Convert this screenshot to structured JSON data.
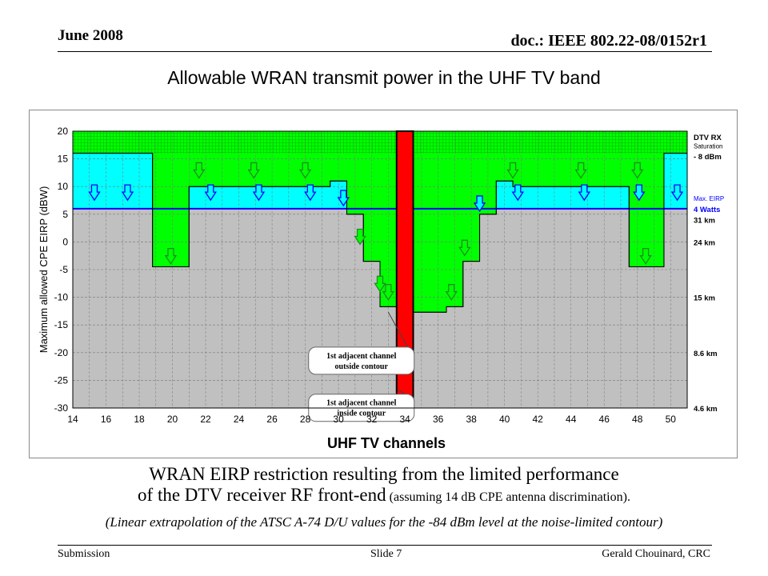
{
  "header": {
    "date": "June 2008",
    "doc_id": "doc.: IEEE 802.22-08/0152r1"
  },
  "slide_title": "Allowable WRAN transmit power in the UHF TV band",
  "captions": {
    "line1": "WRAN EIRP restriction resulting from the limited performance",
    "line2_main": "of the DTV receiver RF front-end",
    "line2_small": " (assuming 14 dB CPE antenna discrimination).",
    "line3": "(Linear extrapolation of the ATSC A-74 D/U values for the -84 dBm level at the noise-limited contour)"
  },
  "footer": {
    "left": "Submission",
    "middle": "Slide 7",
    "right": "Gerald Chouinard, CRC"
  },
  "colors": {
    "gray_background": "#c0c0c0",
    "green": "#00ff00",
    "cyan": "#00ffff",
    "blue_line": "#0000ff",
    "red_bar": "#ff0000",
    "grid": "#777777"
  },
  "chart_data": {
    "type": "area",
    "title": "",
    "xlabel": "UHF TV channels",
    "ylabel": "Maximum allowed CPE EIRP (dBW)",
    "xlim": [
      14,
      51
    ],
    "ylim": [
      -30,
      20
    ],
    "x_ticks": [
      "14",
      "16",
      "18",
      "20",
      "22",
      "24",
      "26",
      "28",
      "30",
      "32",
      "34",
      "36",
      "38",
      "40",
      "42",
      "44",
      "46",
      "48",
      "50"
    ],
    "y_ticks": [
      "20",
      "15",
      "10",
      "5",
      "0",
      "-5",
      "-10",
      "-15",
      "-20",
      "-25",
      "-30"
    ],
    "grid": true,
    "dtv_rx_saturation_dbw": 16,
    "max_eirp_dbw": 6,
    "dtv_channel": 34,
    "allowed_eirp_profile": [
      {
        "x_start": 14,
        "x_end": 18.8,
        "eirp": 16
      },
      {
        "x_start": 18.8,
        "x_end": 21,
        "eirp": -4.5
      },
      {
        "x_start": 21,
        "x_end": 29.5,
        "eirp": 10
      },
      {
        "x_start": 29.5,
        "x_end": 30.5,
        "eirp": 11
      },
      {
        "x_start": 30.5,
        "x_end": 31.5,
        "eirp": 5
      },
      {
        "x_start": 31.5,
        "x_end": 32.5,
        "eirp": -3.5
      },
      {
        "x_start": 32.5,
        "x_end": 33.5,
        "eirp": -11.7
      },
      {
        "x_start": 33.5,
        "x_end": 34.3,
        "eirp": -26.7
      },
      {
        "x_start": 34.3,
        "x_end": 36.5,
        "eirp": -12.7
      },
      {
        "x_start": 36.5,
        "x_end": 37.5,
        "eirp": -11.7
      },
      {
        "x_start": 37.5,
        "x_end": 38.5,
        "eirp": -3.5
      },
      {
        "x_start": 38.5,
        "x_end": 39.5,
        "eirp": 5
      },
      {
        "x_start": 39.5,
        "x_end": 40.5,
        "eirp": 11
      },
      {
        "x_start": 40.5,
        "x_end": 47.5,
        "eirp": 10
      },
      {
        "x_start": 47.5,
        "x_end": 49.6,
        "eirp": -4.5
      },
      {
        "x_start": 49.6,
        "x_end": 51,
        "eirp": 16
      }
    ],
    "red_bar": {
      "x_start": 33.5,
      "x_end": 34.5
    },
    "down_arrows": [
      {
        "x": 15.3,
        "y": 9
      },
      {
        "x": 17.3,
        "y": 9
      },
      {
        "x": 19.9,
        "y": -2.5
      },
      {
        "x": 21.6,
        "y": 13
      },
      {
        "x": 22.3,
        "y": 9
      },
      {
        "x": 24.9,
        "y": 13
      },
      {
        "x": 25.2,
        "y": 9
      },
      {
        "x": 28.0,
        "y": 13
      },
      {
        "x": 28.3,
        "y": 9
      },
      {
        "x": 30.3,
        "y": 8
      },
      {
        "x": 31.3,
        "y": 1
      },
      {
        "x": 32.5,
        "y": -7.5
      },
      {
        "x": 33.0,
        "y": -9
      },
      {
        "x": 36.8,
        "y": -9
      },
      {
        "x": 37.6,
        "y": -1
      },
      {
        "x": 38.5,
        "y": 7
      },
      {
        "x": 40.5,
        "y": 13
      },
      {
        "x": 40.8,
        "y": 9
      },
      {
        "x": 44.6,
        "y": 13
      },
      {
        "x": 44.8,
        "y": 9
      },
      {
        "x": 48.0,
        "y": 13
      },
      {
        "x": 48.1,
        "y": 9
      },
      {
        "x": 48.5,
        "y": -2.5
      },
      {
        "x": 50.4,
        "y": 9
      }
    ],
    "right_labels": [
      {
        "text": "DTV RX",
        "y": 19,
        "bold": true,
        "color": "#000000"
      },
      {
        "text": "Saturation",
        "y": 17.5,
        "bold": false,
        "color": "#000000"
      },
      {
        "text": "- 8 dBm",
        "y": 15.5,
        "bold": true,
        "color": "#000000"
      },
      {
        "text": "Max. EIRP",
        "y": 8,
        "bold": false,
        "color": "#0000ff"
      },
      {
        "text": "4 Watts",
        "y": 6,
        "bold": true,
        "color": "#0000ff"
      },
      {
        "text": "31 km",
        "y": 4,
        "bold": true,
        "color": "#000000"
      },
      {
        "text": "24 km",
        "y": 0,
        "bold": true,
        "color": "#000000"
      },
      {
        "text": "15 km",
        "y": -10,
        "bold": true,
        "color": "#000000"
      },
      {
        "text": "8.6 km",
        "y": -20,
        "bold": true,
        "color": "#000000"
      },
      {
        "text": "4.6 km",
        "y": -30,
        "bold": true,
        "color": "#000000"
      }
    ],
    "callouts": [
      {
        "line1": "1st adjacent channel",
        "line2": "outside contour",
        "box_x": 28.2,
        "box_y": -19,
        "target_x": 33.0,
        "target_y": -12.7
      },
      {
        "line1": "1st adjacent channel",
        "line2": "inside contour",
        "box_x": 28.2,
        "box_y": -27.5,
        "target_x": 33.6,
        "target_y": -26.7
      }
    ]
  }
}
